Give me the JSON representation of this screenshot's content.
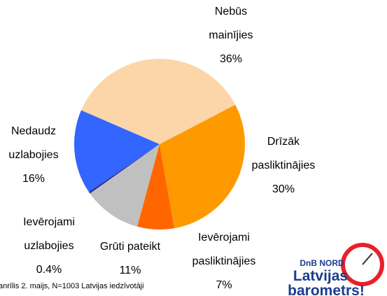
{
  "chart_data": {
    "type": "pie",
    "categories": [
      "Nebūs mainījies",
      "Drīzāk pasliktinājies",
      "Ievērojami pasliktinājies",
      "Grūti pateikt",
      "Ievērojami uzlabojies",
      "Nedaudz uzlabojies"
    ],
    "values": [
      36,
      30,
      7,
      11,
      0.4,
      16
    ],
    "value_labels": [
      "36%",
      "30%",
      "7%",
      "11%",
      "0.4%",
      "16%"
    ],
    "colors": [
      "#FCD5A8",
      "#FF9900",
      "#FF6600",
      "#C0C0C0",
      "#333399",
      "#3366FF"
    ],
    "source": "anrīlis 2. maijs, N=1003 Latvijas iedzīvotāji"
  },
  "logo": {
    "brand": "DnB NORD",
    "line1": "Latvijas",
    "line2": "barometrs!"
  }
}
